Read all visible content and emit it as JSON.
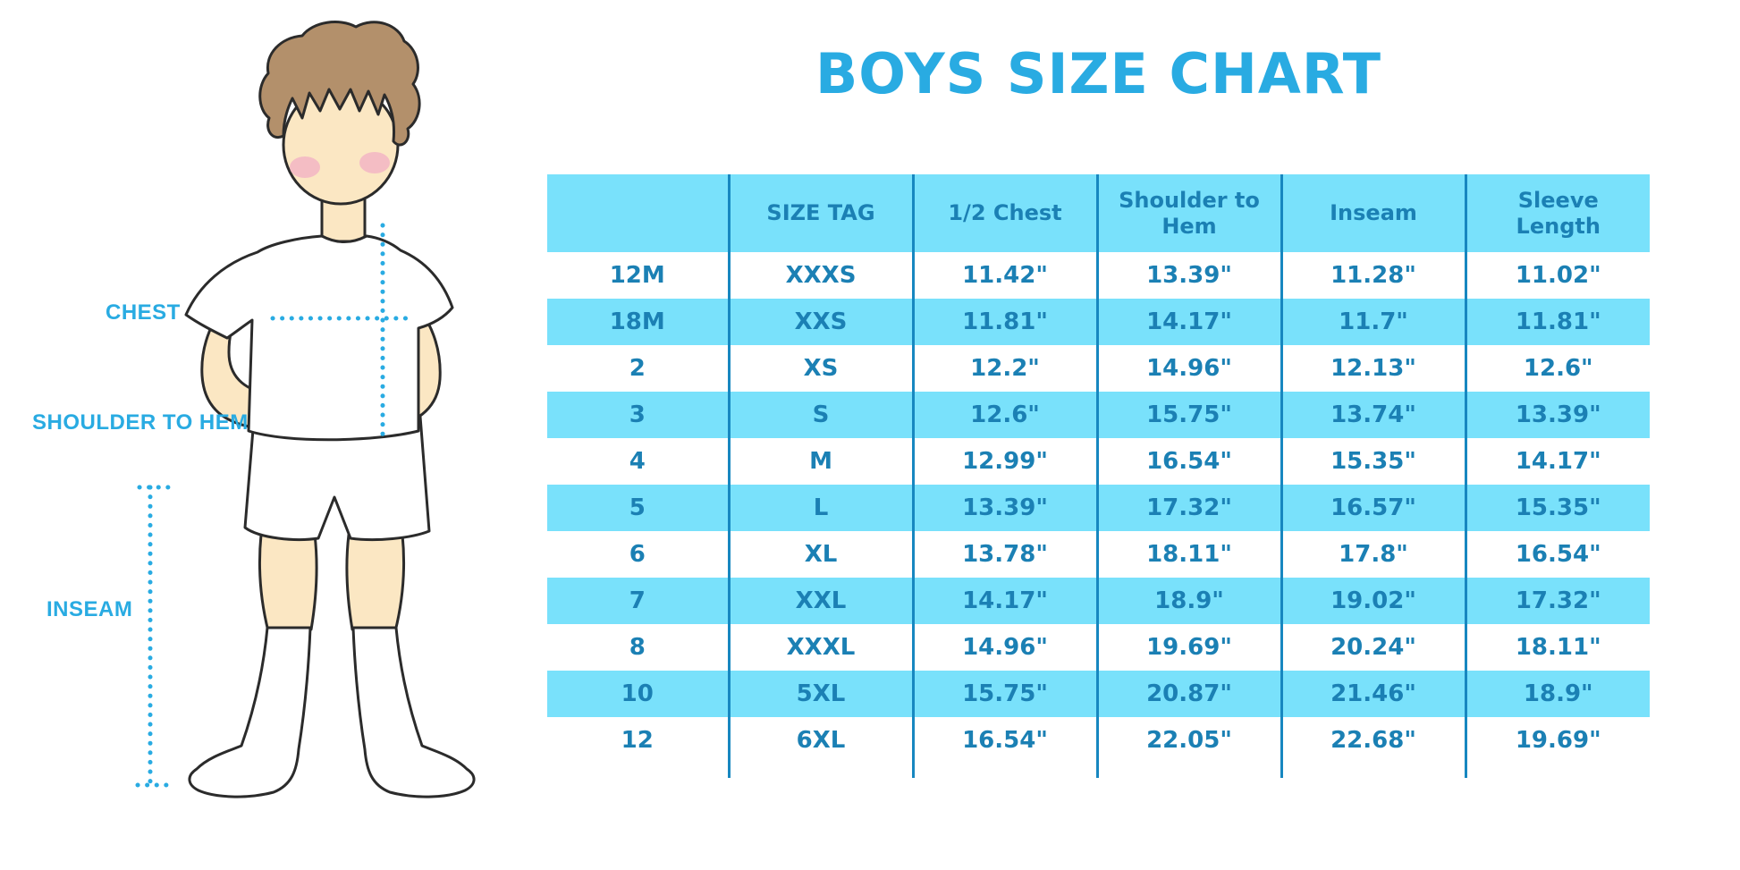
{
  "title": "BOYS SIZE CHART",
  "figure": {
    "chest_label": "CHEST",
    "shoulder_to_hem_label": "SHOULDER TO HEM",
    "inseam_label": "INSEAM"
  },
  "colors": {
    "accent_blue": "#29ABE2",
    "table_fill": "#79E1FB",
    "table_text": "#1B80B4",
    "table_line": "#1787C0",
    "skin": "#FBE7C3",
    "hair": "#B3906B",
    "blush": "#F2B3C4",
    "outline": "#2B2B2B"
  },
  "chart_data": {
    "type": "table",
    "title": "BOYS SIZE CHART",
    "units": "inches",
    "row_shading": "alternating white and light blue",
    "columns": [
      "",
      "SIZE TAG",
      "1/2 Chest",
      "Shoulder to Hem",
      "Inseam",
      "Sleeve Length"
    ],
    "rows": [
      [
        "12M",
        "XXXS",
        "11.42\"",
        "13.39\"",
        "11.28\"",
        "11.02\""
      ],
      [
        "18M",
        "XXS",
        "11.81\"",
        "14.17\"",
        "11.7\"",
        "11.81\""
      ],
      [
        "2",
        "XS",
        "12.2\"",
        "14.96\"",
        "12.13\"",
        "12.6\""
      ],
      [
        "3",
        "S",
        "12.6\"",
        "15.75\"",
        "13.74\"",
        "13.39\""
      ],
      [
        "4",
        "M",
        "12.99\"",
        "16.54\"",
        "15.35\"",
        "14.17\""
      ],
      [
        "5",
        "L",
        "13.39\"",
        "17.32\"",
        "16.57\"",
        "15.35\""
      ],
      [
        "6",
        "XL",
        "13.78\"",
        "18.11\"",
        "17.8\"",
        "16.54\""
      ],
      [
        "7",
        "XXL",
        "14.17\"",
        "18.9\"",
        "19.02\"",
        "17.32\""
      ],
      [
        "8",
        "XXXL",
        "14.96\"",
        "19.69\"",
        "20.24\"",
        "18.11\""
      ],
      [
        "10",
        "5XL",
        "15.75\"",
        "20.87\"",
        "21.46\"",
        "18.9\""
      ],
      [
        "12",
        "6XL",
        "16.54\"",
        "22.05\"",
        "22.68\"",
        "19.69\""
      ]
    ]
  }
}
